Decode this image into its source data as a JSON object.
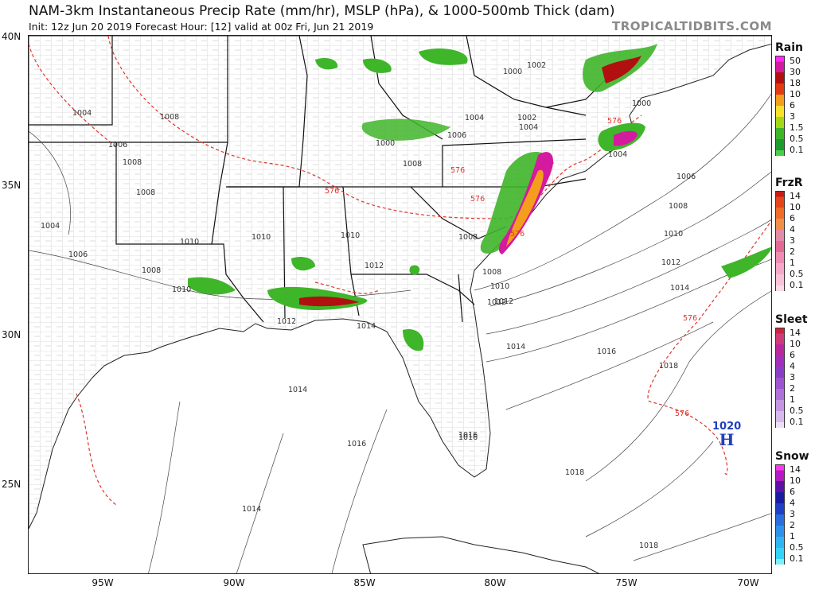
{
  "header": {
    "title": "NAM-3km Instantaneous Precip Rate (mm/hr), MSLP (hPa), & 1000-500mb Thick (dam)",
    "subtitle": "Init: 12z Jun 20 2019   Forecast Hour: [12]   valid at 00z Fri, Jun 21 2019",
    "brand": "TROPICALTIDBITS.COM"
  },
  "axes": {
    "latitudes": [
      "40N",
      "35N",
      "30N",
      "25N"
    ],
    "longitudes": [
      "95W",
      "90W",
      "85W",
      "80W",
      "75W",
      "70W"
    ]
  },
  "isobar_labels": [
    "1004",
    "1008",
    "1006",
    "1008",
    "1008",
    "1004",
    "1006",
    "1008",
    "1010",
    "1010",
    "1010",
    "1012",
    "1012",
    "1008",
    "1010",
    "1012",
    "1014",
    "1014",
    "1016",
    "1016",
    "1018",
    "1018",
    "1014",
    "1000",
    "1000",
    "1004",
    "1002",
    "1004",
    "1006",
    "1008",
    "1010",
    "1012",
    "1014",
    "1016",
    "1018",
    "1000",
    "1002",
    "1004",
    "1006",
    "1008",
    "1008",
    "1010",
    "1012",
    "1014",
    "1016"
  ],
  "thickness_labels": [
    "576",
    "576",
    "576",
    "576",
    "576",
    "576",
    "576"
  ],
  "high_pressure": {
    "value": "1020",
    "letter": "H"
  },
  "legend": [
    {
      "title": "Rain",
      "labels": [
        "50",
        "30",
        "18",
        "10",
        "6",
        "3",
        "1.5",
        "0.5",
        "0.1"
      ],
      "colors": [
        "#ff2df6",
        "#d41a9e",
        "#b01010",
        "#e23a12",
        "#f59d1d",
        "#f8e12b",
        "#a5d719",
        "#3fb52a",
        "#1f9a2e",
        "#47cf47",
        "#c8f4c3"
      ]
    },
    {
      "title": "FrzR",
      "labels": [
        "14",
        "10",
        "6",
        "4",
        "3",
        "2",
        "1",
        "0.5",
        "0.1"
      ],
      "colors": [
        "#c61d16",
        "#e5451a",
        "#f06c2a",
        "#f08f4a",
        "#e58aa7",
        "#e46a96",
        "#f08cb4",
        "#f5a9c8",
        "#f9c3d9",
        "#fcdbe8"
      ]
    },
    {
      "title": "Sleet",
      "labels": [
        "14",
        "10",
        "6",
        "4",
        "3",
        "2",
        "1",
        "0.5",
        "0.1"
      ],
      "colors": [
        "#c9233f",
        "#d03a7a",
        "#b9289b",
        "#a12fba",
        "#8a3ec6",
        "#9b56cf",
        "#ae72d8",
        "#c496e2",
        "#d8b9ec",
        "#ede0f5"
      ]
    },
    {
      "title": "Snow",
      "labels": [
        "14",
        "10",
        "6",
        "4",
        "3",
        "2",
        "1",
        "0.5",
        "0.1"
      ],
      "colors": [
        "#ff36f0",
        "#b31ac0",
        "#5d12a6",
        "#1b1aa4",
        "#1f3fc4",
        "#2a6ddc",
        "#2f92ea",
        "#33b4f2",
        "#37d2f8",
        "#7af0fb"
      ]
    }
  ],
  "colors": {
    "isobar": "#333333",
    "thickness": "#e0352b",
    "high": "#1f3fbf",
    "rain_light": "#3fb52a",
    "rain_heavy": "#d41a9e"
  }
}
